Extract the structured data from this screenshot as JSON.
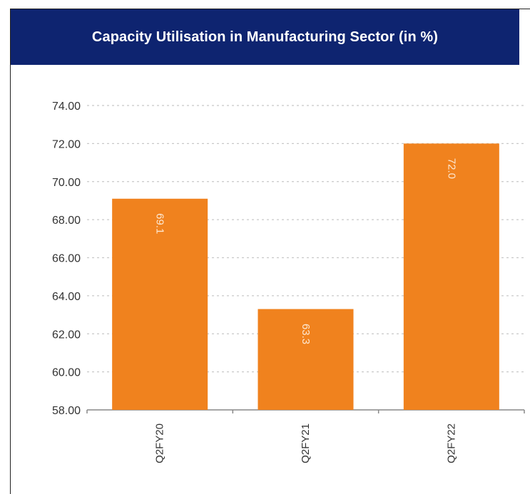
{
  "colors": {
    "title_bg": "#0e2470",
    "bar": "#f0821e",
    "grid": "#c8c8c8",
    "axis": "#888888",
    "tick_text": "#333333",
    "bar_label": "#fde8d2"
  },
  "chart_data": {
    "type": "bar",
    "title": "Capacity Utilisation in Manufacturing Sector (in %)",
    "categories": [
      "Q2FY20",
      "Q2FY21",
      "Q2FY22"
    ],
    "values": [
      69.1,
      63.3,
      72.0
    ],
    "value_labels": [
      "69.1",
      "63.3",
      "72.0"
    ],
    "ylim": [
      58,
      74
    ],
    "yticks": [
      "74.00",
      "72.00",
      "70.00",
      "68.00",
      "66.00",
      "64.00",
      "62.00",
      "60.00",
      "58.00"
    ],
    "grid": true,
    "legend": "none"
  }
}
